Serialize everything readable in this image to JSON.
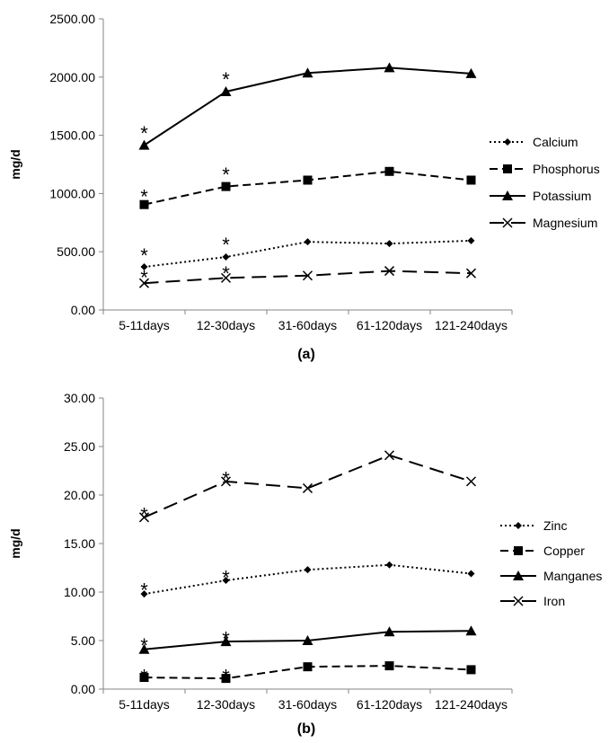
{
  "chart_data": [
    {
      "type": "line",
      "title": "",
      "caption": "(a)",
      "xlabel": "",
      "ylabel": "mg/d",
      "ylim": [
        0,
        2500
      ],
      "yticks": [
        "0.00",
        "500.00",
        "1000.00",
        "1500.00",
        "2000.00",
        "2500.00"
      ],
      "categories": [
        "5-11days",
        "12-30days",
        "31-60days",
        "61-120days",
        "121-240days"
      ],
      "legend_position": "right",
      "series": [
        {
          "name": "Calcium",
          "values": [
            370,
            455,
            585,
            570,
            595
          ],
          "color": "#000000",
          "dash": "dotted",
          "marker": "diamond"
        },
        {
          "name": "Phosphorus",
          "values": [
            905,
            1060,
            1115,
            1190,
            1115
          ],
          "color": "#000000",
          "dash": "dashed",
          "marker": "square"
        },
        {
          "name": "Potassium",
          "values": [
            1415,
            1875,
            2035,
            2080,
            2030
          ],
          "color": "#000000",
          "dash": "solid",
          "marker": "triangle"
        },
        {
          "name": "Magnesium",
          "values": [
            230,
            275,
            295,
            335,
            315
          ],
          "color": "#000000",
          "dash": "longdash",
          "marker": "x"
        }
      ],
      "annotations": [
        {
          "text": "*",
          "category": "5-11days",
          "y": 1545
        },
        {
          "text": "*",
          "category": "12-30days",
          "y": 2005
        },
        {
          "text": "*",
          "category": "5-11days",
          "y": 1000
        },
        {
          "text": "*",
          "category": "12-30days",
          "y": 1190
        },
        {
          "text": "*",
          "category": "5-11days",
          "y": 495
        },
        {
          "text": "*",
          "category": "12-30days",
          "y": 585
        },
        {
          "text": "*",
          "category": "5-11days",
          "y": 305
        },
        {
          "text": "*",
          "category": "12-30days",
          "y": 340
        }
      ]
    },
    {
      "type": "line",
      "title": "",
      "caption": "(b)",
      "xlabel": "",
      "ylabel": "mg/d",
      "ylim": [
        0,
        30
      ],
      "yticks": [
        "0.00",
        "5.00",
        "10.00",
        "15.00",
        "20.00",
        "25.00",
        "30.00"
      ],
      "categories": [
        "5-11days",
        "12-30days",
        "31-60days",
        "61-120days",
        "121-240days"
      ],
      "legend_position": "right",
      "series": [
        {
          "name": "Zinc",
          "values": [
            9.8,
            11.2,
            12.3,
            12.8,
            11.9
          ],
          "color": "#000000",
          "dash": "dotted",
          "marker": "diamond"
        },
        {
          "name": "Copper",
          "values": [
            1.2,
            1.1,
            2.3,
            2.4,
            2.0
          ],
          "color": "#000000",
          "dash": "dashed",
          "marker": "square"
        },
        {
          "name": "Manganes",
          "values": [
            4.1,
            4.9,
            5.0,
            5.9,
            6.0
          ],
          "color": "#000000",
          "dash": "solid",
          "marker": "triangle"
        },
        {
          "name": "Iron",
          "values": [
            17.7,
            21.4,
            20.7,
            24.1,
            21.4
          ],
          "color": "#000000",
          "dash": "longdash",
          "marker": "x"
        }
      ],
      "annotations": [
        {
          "text": "*",
          "category": "5-11days",
          "y": 18.3
        },
        {
          "text": "*",
          "category": "12-30days",
          "y": 22.0
        },
        {
          "text": "*",
          "category": "5-11days",
          "y": 10.5
        },
        {
          "text": "*",
          "category": "12-30days",
          "y": 11.8
        },
        {
          "text": "*",
          "category": "5-11days",
          "y": 4.8
        },
        {
          "text": "*",
          "category": "12-30days",
          "y": 5.5
        },
        {
          "text": "*",
          "category": "5-11days",
          "y": 1.6
        },
        {
          "text": "*",
          "category": "12-30days",
          "y": 1.6
        }
      ]
    }
  ]
}
